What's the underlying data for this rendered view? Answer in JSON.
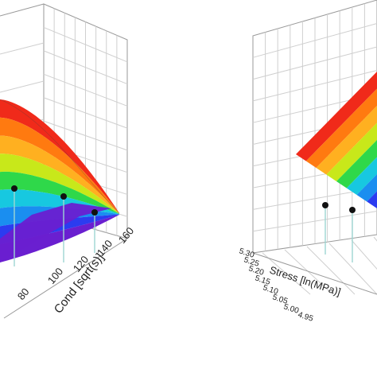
{
  "colors": {
    "grid": "#cfcfcf",
    "frame": "#9a9a9a",
    "drop_line": "#9ed6d2",
    "point": "#111111",
    "axis_text": "#222222",
    "surface_bands": [
      "#6a1fd0",
      "#2b3cf0",
      "#1a8ef0",
      "#17c8e0",
      "#2fd84a",
      "#c8e81a",
      "#ffb020",
      "#ff7a10",
      "#f02a1a"
    ]
  },
  "chart_data": [
    {
      "type": "surface3d",
      "title": "",
      "xlabel": "Cond [sqrt(s)]",
      "x_ticks": [
        "80",
        "100",
        "120",
        "140",
        "160"
      ],
      "xlim": [
        70,
        165
      ],
      "surface": "curved colormap surface decreasing toward high Cond",
      "points": [
        {
          "cond": 128,
          "z_rel": 0.42
        },
        {
          "cond": 150,
          "z_rel": 0.36
        },
        {
          "cond": 98,
          "z_rel": 0.55
        }
      ]
    },
    {
      "type": "surface3d",
      "title": "",
      "xlabel": "Stress [ln(MPa)]",
      "x_ticks": [
        "5.30",
        "5.25",
        "5.20",
        "5.15",
        "5.10",
        "5.05",
        "5.00",
        "4.95"
      ],
      "surface": "planar colormap surface",
      "points": [
        {
          "stress": 5.13,
          "z_rel": 0.4
        },
        {
          "stress": 5.04,
          "z_rel": 0.36
        }
      ]
    }
  ]
}
